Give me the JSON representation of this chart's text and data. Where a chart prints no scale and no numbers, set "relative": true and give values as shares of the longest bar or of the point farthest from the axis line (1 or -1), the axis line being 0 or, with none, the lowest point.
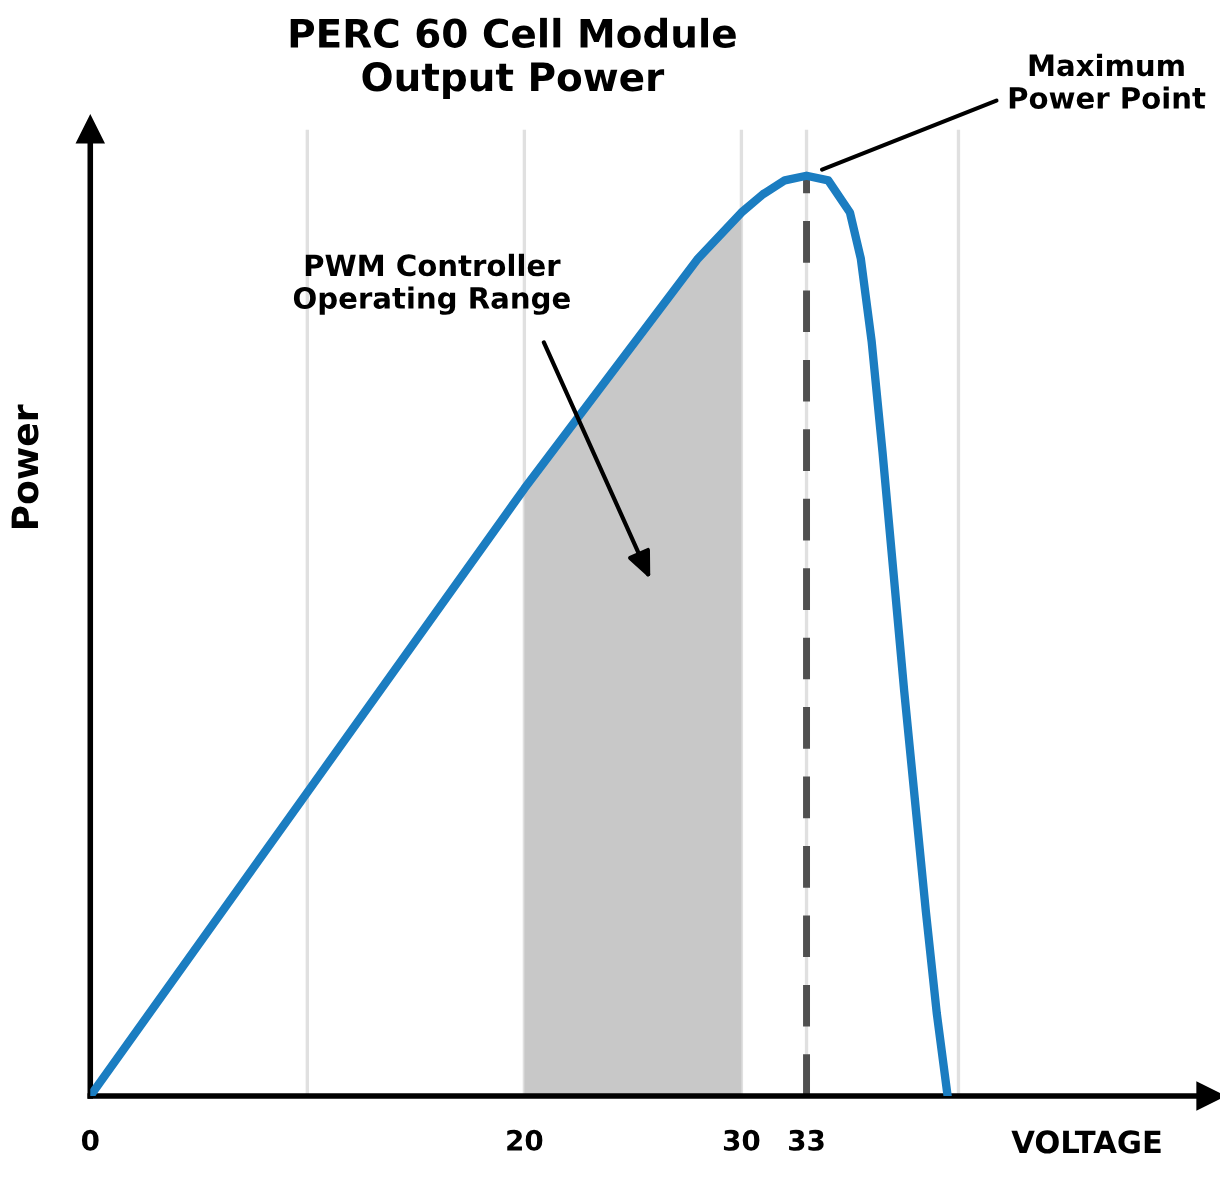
{
  "chart_data": {
    "type": "line",
    "title": "PERC 60 Cell Module\nOutput Power",
    "xlabel": "VOLTAGE",
    "ylabel": "Power",
    "relative": true,
    "series": [
      {
        "color": "#1b7dc1",
        "x": [
          0,
          10,
          20,
          28,
          30,
          31,
          32,
          33,
          34,
          35,
          35.5,
          36,
          36.5,
          37,
          37.5,
          38,
          38.5,
          39,
          39.5
        ],
        "values": [
          0,
          0.33,
          0.66,
          0.91,
          0.96,
          0.98,
          0.995,
          1.0,
          0.995,
          0.96,
          0.91,
          0.82,
          0.7,
          0.57,
          0.44,
          0.32,
          0.2,
          0.09,
          0
        ]
      }
    ],
    "xlim": [
      0,
      51.6
    ],
    "xticks": [
      0,
      {
        "value": 10,
        "label": null
      },
      20,
      30,
      33,
      {
        "value": 40,
        "label": null
      }
    ],
    "grid": "x",
    "tick_labels": "x",
    "line_style": "solid",
    "marker": "none",
    "bands": [
      {
        "axis": "x",
        "from": 20,
        "to": 30,
        "color": "#c8c8c8"
      }
    ],
    "ref_lines": [
      {
        "axis": "x",
        "value": 33,
        "color": "#505050",
        "line_style": "dashed"
      }
    ],
    "annotations": [
      "PWM Controller\nOperating Range",
      {
        "text": "Maximum\nPower Point",
        "x": 33,
        "y": 1.0
      }
    ]
  }
}
